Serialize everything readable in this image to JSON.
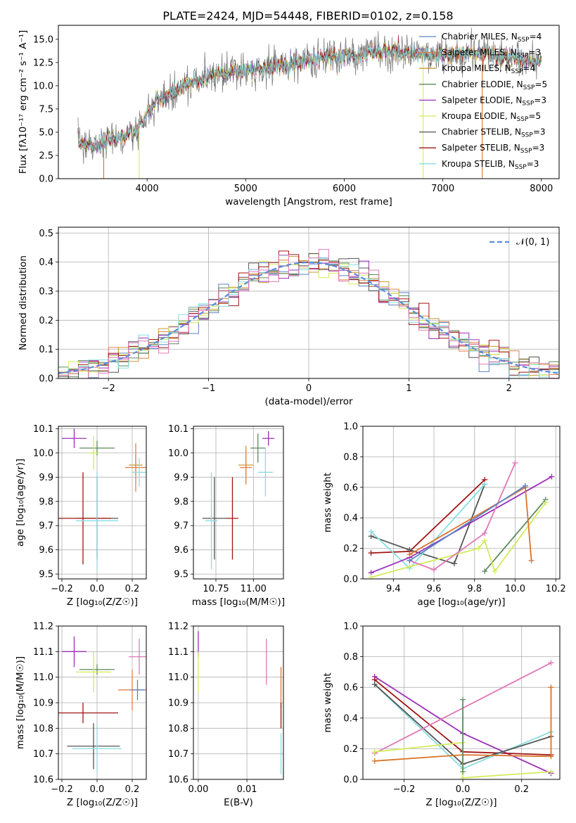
{
  "figure_title": "PLATE=2424, MJD=54448, FIBERID=0102, z=0.158",
  "colors": {
    "Chabrier MILES": "#5b84c6",
    "Salpeter MILES": "#e0814a",
    "Kroupa MILES": "#c79a3a",
    "Chabrier ELODIE": "#5c8a5c",
    "Salpeter ELODIE": "#9b30b8",
    "Kroupa ELODIE": "#d2ec5c",
    "Chabrier STELIB": "#555555",
    "Salpeter STELIB": "#a01414",
    "Kroupa STELIB": "#88dde0",
    "gray_data": "#808080",
    "normal_curve": "#5b8ddc",
    "extra_pink": "#e079b8",
    "extra_orange": "#d9742a"
  },
  "chart_data": [
    {
      "id": "spectrum",
      "type": "line",
      "title": "PLATE=2424, MJD=54448, FIBERID=0102, z=0.158",
      "xlabel": "wavelength [Angstrom, rest frame]",
      "ylabel": "Flux [fλ10⁻¹⁷ erg cm⁻² s⁻¹ A⁻¹]",
      "xlim": [
        3100,
        8180
      ],
      "ylim": [
        0,
        16.5
      ],
      "xticks": [
        "4000",
        "5000",
        "6000",
        "7000",
        "8000"
      ],
      "yticks": [
        "0.0",
        "2.5",
        "5.0",
        "7.5",
        "10.0",
        "12.5",
        "15.0"
      ],
      "grid": false,
      "legend_position": "right",
      "legend": [
        {
          "name": "Chabrier MILES",
          "nssp": "4"
        },
        {
          "name": "Salpeter MILES",
          "nssp": "3"
        },
        {
          "name": "Kroupa MILES",
          "nssp": "4"
        },
        {
          "name": "Chabrier ELODIE",
          "nssp": "5"
        },
        {
          "name": "Salpeter ELODIE",
          "nssp": "3"
        },
        {
          "name": "Kroupa ELODIE",
          "nssp": "5"
        },
        {
          "name": "Chabrier STELIB",
          "nssp": "3"
        },
        {
          "name": "Salpeter STELIB",
          "nssp": "3"
        },
        {
          "name": "Kroupa STELIB",
          "nssp": "3"
        }
      ],
      "continuum_x": [
        3300,
        3500,
        3700,
        3900,
        4000,
        4100,
        4300,
        4500,
        4700,
        5000,
        5300,
        5500,
        5800,
        6100,
        6300,
        6500,
        6700,
        7000,
        7300,
        7500,
        7700,
        7900
      ],
      "continuum_y": [
        3.9,
        3.6,
        4.4,
        5.0,
        7.0,
        8.3,
        9.5,
        10.5,
        11.3,
        11.7,
        12.1,
        12.6,
        13.0,
        13.3,
        13.6,
        13.7,
        13.4,
        13.2,
        13.5,
        13.3,
        13.0,
        12.6
      ]
    },
    {
      "id": "residuals",
      "type": "line",
      "xlabel": "(data-model)/error",
      "ylabel": "Normed distribution",
      "xlim": [
        -2.5,
        2.5
      ],
      "ylim": [
        0,
        0.52
      ],
      "xticks": [
        "−2",
        "−1",
        "0",
        "1",
        "2"
      ],
      "yticks": [
        "0.0",
        "0.1",
        "0.2",
        "0.3",
        "0.4",
        "0.5"
      ],
      "grid": true,
      "legend_position": "top-right",
      "legend": [
        "𝒩(0, 1)"
      ]
    },
    {
      "id": "age_vs_Z",
      "type": "scatter",
      "xlabel": "Z [log₁₀(Z/Z☉)]",
      "ylabel": "age  [log₁₀(age/yr)]",
      "xlim": [
        -0.22,
        0.28
      ],
      "ylim": [
        9.48,
        10.11
      ],
      "xticks": [
        "−0.2",
        "0.0",
        "0.2"
      ],
      "yticks": [
        "9.5",
        "9.6",
        "9.7",
        "9.8",
        "9.9",
        "10.0",
        "10.1"
      ],
      "grid": true,
      "points": [
        {
          "series": "Salpeter ELODIE",
          "x": -0.13,
          "y": 10.06,
          "xerr": 0.07,
          "yerr": 0.04
        },
        {
          "series": "Chabrier ELODIE",
          "x": 0.0,
          "y": 10.02,
          "xerr": 0.1,
          "yerr": 0.03
        },
        {
          "series": "Kroupa ELODIE",
          "x": -0.02,
          "y": 10.0,
          "xerr": 0.03,
          "yerr": 0.07
        },
        {
          "series": "Kroupa MILES",
          "x": 0.22,
          "y": 9.95,
          "xerr": 0.04,
          "yerr": 0.04
        },
        {
          "series": "Salpeter MILES",
          "x": 0.22,
          "y": 9.94,
          "xerr": 0.06,
          "yerr": 0.1
        },
        {
          "series": "Kroupa STELIB",
          "x": 0.24,
          "y": 9.92,
          "xerr": 0.04,
          "yerr": 0.06
        },
        {
          "series": "Chabrier STELIB",
          "x": 0.0,
          "y": 9.73,
          "xerr": 0.12,
          "yerr": 0.17
        },
        {
          "series": "Salpeter STELIB",
          "x": -0.08,
          "y": 9.73,
          "xerr": 0.16,
          "yerr": 0.19
        },
        {
          "series": "Kroupa STELIB",
          "x": 0.0,
          "y": 9.72,
          "xerr": 0.12,
          "yerr": 0.2
        }
      ]
    },
    {
      "id": "age_vs_mass",
      "type": "scatter",
      "xlabel": "mass [log₁₀(M/M☉)]",
      "xlim": [
        10.6,
        11.2
      ],
      "ylim": [
        9.48,
        10.11
      ],
      "xticks": [
        "10.75",
        "11.00"
      ],
      "yticks": [
        "9.5",
        "9.6",
        "9.7",
        "9.8",
        "9.9",
        "10.0",
        "10.1"
      ],
      "grid": true,
      "points": [
        {
          "series": "Salpeter ELODIE",
          "x": 11.1,
          "y": 10.06,
          "xerr": 0.04,
          "yerr": 0.03
        },
        {
          "series": "Chabrier ELODIE",
          "x": 11.03,
          "y": 10.02,
          "xerr": 0.05,
          "yerr": 0.06
        },
        {
          "series": "Kroupa MILES",
          "x": 10.95,
          "y": 9.95,
          "xerr": 0.05,
          "yerr": 0.08
        },
        {
          "series": "Salpeter MILES",
          "x": 10.95,
          "y": 9.94,
          "xerr": 0.04,
          "yerr": 0.07
        },
        {
          "series": "Kroupa STELIB",
          "x": 11.08,
          "y": 9.92,
          "xerr": 0.05,
          "yerr": 0.1
        },
        {
          "series": "Chabrier STELIB",
          "x": 10.74,
          "y": 9.73,
          "xerr": 0.08,
          "yerr": 0.17
        },
        {
          "series": "Salpeter STELIB",
          "x": 10.86,
          "y": 9.73,
          "xerr": 0.04,
          "yerr": 0.17
        },
        {
          "series": "Kroupa STELIB",
          "x": 10.72,
          "y": 9.72,
          "xerr": 0.04,
          "yerr": 0.2
        }
      ]
    },
    {
      "id": "weight_vs_age",
      "type": "line",
      "xlabel": "age  [log₁₀(age/yr)]",
      "ylabel": "mass weight",
      "xlim": [
        9.25,
        10.22
      ],
      "ylim": [
        0,
        1.0
      ],
      "xticks": [
        "9.4",
        "9.6",
        "9.8",
        "10.0",
        "10.2"
      ],
      "yticks": [
        "0.0",
        "0.2",
        "0.4",
        "0.6",
        "0.8",
        "1.0"
      ],
      "grid": true,
      "series": [
        {
          "series": "Salpeter STELIB",
          "x": [
            9.29,
            9.48,
            9.85
          ],
          "y": [
            0.17,
            0.18,
            0.65
          ]
        },
        {
          "series": "Chabrier STELIB",
          "x": [
            9.29,
            9.48,
            9.7,
            9.85
          ],
          "y": [
            0.28,
            0.19,
            0.1,
            0.62
          ]
        },
        {
          "series": "Kroupa STELIB",
          "x": [
            9.29,
            9.48,
            9.85
          ],
          "y": [
            0.31,
            0.07,
            0.62
          ]
        },
        {
          "series": "Salpeter ELODIE",
          "x": [
            9.29,
            9.48,
            10.18
          ],
          "y": [
            0.04,
            0.14,
            0.67
          ]
        },
        {
          "series": "Chabrier ELODIE",
          "x": [
            9.85,
            10.15
          ],
          "y": [
            0.05,
            0.52
          ]
        },
        {
          "series": "Kroupa ELODIE",
          "x": [
            9.29,
            9.48,
            9.82,
            9.85,
            9.9,
            10.15
          ],
          "y": [
            0.01,
            0.08,
            0.2,
            0.25,
            0.05,
            0.5
          ]
        },
        {
          "series": "extra_pink",
          "x": [
            9.48,
            9.6,
            9.85,
            10.0
          ],
          "y": [
            0.12,
            0.06,
            0.3,
            0.76
          ]
        },
        {
          "series": "extra_orange",
          "x": [
            9.48,
            10.05,
            10.08
          ],
          "y": [
            0.16,
            0.6,
            0.12
          ]
        },
        {
          "series": "Chabrier MILES",
          "x": [
            9.48,
            10.05
          ],
          "y": [
            0.12,
            0.61
          ]
        }
      ]
    },
    {
      "id": "mass_vs_Z",
      "type": "scatter",
      "xlabel": "Z [log₁₀(Z/Z☉)]",
      "ylabel": "mass [log₁₀(M/M☉)]",
      "xlim": [
        -0.22,
        0.28
      ],
      "ylim": [
        10.6,
        11.2
      ],
      "xticks": [
        "−0.2",
        "0.0",
        "0.2"
      ],
      "yticks": [
        "10.6",
        "10.7",
        "10.8",
        "10.9",
        "11.0",
        "11.1",
        "11.2"
      ],
      "grid": true,
      "points": [
        {
          "series": "Salpeter ELODIE",
          "x": -0.13,
          "y": 11.1,
          "xerr": 0.07,
          "yerr": 0.06
        },
        {
          "series": "Chabrier ELODIE",
          "x": 0.0,
          "y": 11.03,
          "xerr": 0.1,
          "yerr": 0.02
        },
        {
          "series": "Kroupa ELODIE",
          "x": -0.02,
          "y": 11.02,
          "xerr": 0.1,
          "yerr": 0.08
        },
        {
          "series": "extra_pink",
          "x": 0.24,
          "y": 11.08,
          "xerr": 0.06,
          "yerr": 0.07
        },
        {
          "series": "Salpeter MILES",
          "x": 0.2,
          "y": 10.95,
          "xerr": 0.08,
          "yerr": 0.08
        },
        {
          "series": "Chabrier MILES",
          "x": 0.23,
          "y": 10.95,
          "xerr": 0.04,
          "yerr": 0.04
        },
        {
          "series": "Salpeter STELIB",
          "x": -0.08,
          "y": 10.86,
          "xerr": 0.2,
          "yerr": 0.04
        },
        {
          "series": "Chabrier STELIB",
          "x": -0.02,
          "y": 10.73,
          "xerr": 0.15,
          "yerr": 0.09
        },
        {
          "series": "Kroupa STELIB",
          "x": 0.0,
          "y": 10.72,
          "xerr": 0.14,
          "yerr": 0.09
        }
      ]
    },
    {
      "id": "mass_vs_EBV",
      "type": "scatter",
      "xlabel": "E(B-V)",
      "xlim": [
        -0.001,
        0.0175
      ],
      "ylim": [
        10.6,
        11.2
      ],
      "xticks": [
        "0.00",
        "0.01"
      ],
      "yticks": [
        "10.6",
        "10.7",
        "10.8",
        "10.9",
        "11.0",
        "11.1",
        "11.2"
      ],
      "grid": true,
      "points": [
        {
          "series": "Salpeter ELODIE",
          "x": 0.0,
          "y": 11.13,
          "xerr": 0,
          "yerr": 0.05
        },
        {
          "series": "Kroupa ELODIE",
          "x": 0.0,
          "y": 11.02,
          "xerr": 0,
          "yerr": 0.08
        },
        {
          "series": "extra_pink",
          "x": 0.014,
          "y": 11.06,
          "xerr": 0,
          "yerr": 0.09
        },
        {
          "series": "extra_orange",
          "x": 0.017,
          "y": 10.96,
          "xerr": 0,
          "yerr": 0.08
        },
        {
          "series": "Salpeter STELIB",
          "x": 0.017,
          "y": 10.85,
          "xerr": 0,
          "yerr": 0.05
        },
        {
          "series": "Kroupa STELIB",
          "x": 0.017,
          "y": 10.7,
          "xerr": 0,
          "yerr": 0.08
        }
      ]
    },
    {
      "id": "weight_vs_Z",
      "type": "line",
      "xlabel": "Z [log₁₀(Z/Z☉)]",
      "ylabel": "mass weight",
      "xlim": [
        -0.34,
        0.33
      ],
      "ylim": [
        0,
        1.0
      ],
      "xticks": [
        "−0.2",
        "0.0",
        "0.2"
      ],
      "yticks": [
        "0.0",
        "0.2",
        "0.4",
        "0.6",
        "0.8",
        "1.0"
      ],
      "grid": true,
      "series": [
        {
          "series": "Salpeter ELODIE",
          "x": [
            -0.3,
            0.0,
            0.3
          ],
          "y": [
            0.67,
            0.3,
            0.04
          ]
        },
        {
          "series": "Salpeter STELIB",
          "x": [
            -0.3,
            0.0,
            0.3
          ],
          "y": [
            0.65,
            0.18,
            0.16
          ]
        },
        {
          "series": "Kroupa STELIB",
          "x": [
            -0.3,
            0.0,
            0.3
          ],
          "y": [
            0.62,
            0.07,
            0.31
          ]
        },
        {
          "series": "Chabrier STELIB",
          "x": [
            -0.3,
            0.0,
            0.3
          ],
          "y": [
            0.62,
            0.1,
            0.28
          ]
        },
        {
          "series": "extra_pink",
          "x": [
            -0.3,
            0.3
          ],
          "y": [
            0.17,
            0.76
          ]
        },
        {
          "series": "Kroupa ELODIE",
          "x": [
            -0.3,
            0.0,
            0.0,
            0.3
          ],
          "y": [
            0.18,
            0.24,
            0.01,
            0.05
          ]
        },
        {
          "series": "extra_orange",
          "x": [
            -0.3,
            0.0,
            0.3,
            0.3
          ],
          "y": [
            0.12,
            0.16,
            0.15,
            0.6
          ]
        },
        {
          "series": "Chabrier ELODIE",
          "x": [
            0.0,
            0.0
          ],
          "y": [
            0.05,
            0.52
          ]
        }
      ]
    }
  ]
}
